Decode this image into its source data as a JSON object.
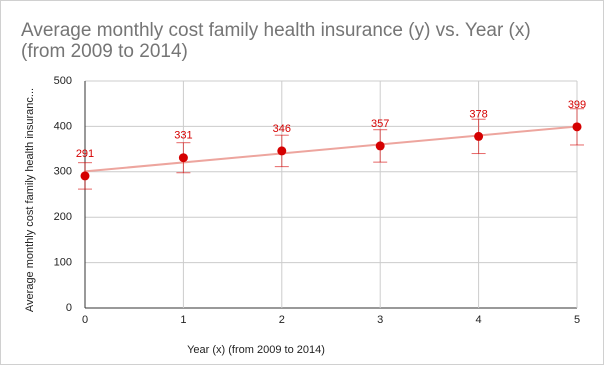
{
  "chart_data": {
    "type": "scatter",
    "title": "Average monthly cost family health insurance (y) vs. Year (x) (from 2009 to 2014)",
    "x_label": "Year (x) (from 2009 to 2014)",
    "y_label": "Average monthly cost family health insuranc...",
    "x": [
      0,
      1,
      2,
      3,
      4,
      5
    ],
    "series": [
      {
        "name": "Average monthly cost family health insurance (y)",
        "color": "#d50000",
        "values": [
          291,
          331,
          346,
          357,
          378,
          399
        ],
        "errors": [
          29.1,
          33.1,
          34.6,
          35.7,
          37.8,
          39.9
        ]
      }
    ],
    "trendline": {
      "x": [
        0,
        5
      ],
      "values": [
        300.9,
        399.8
      ],
      "color": "#eda59e"
    },
    "xlim": [
      0,
      5
    ],
    "xticks": [
      0,
      1,
      2,
      3,
      4,
      5
    ],
    "ylim": [
      0,
      500
    ],
    "yticks": [
      0,
      100,
      200,
      300,
      400,
      500
    ],
    "grid": true,
    "data_labels": true
  }
}
